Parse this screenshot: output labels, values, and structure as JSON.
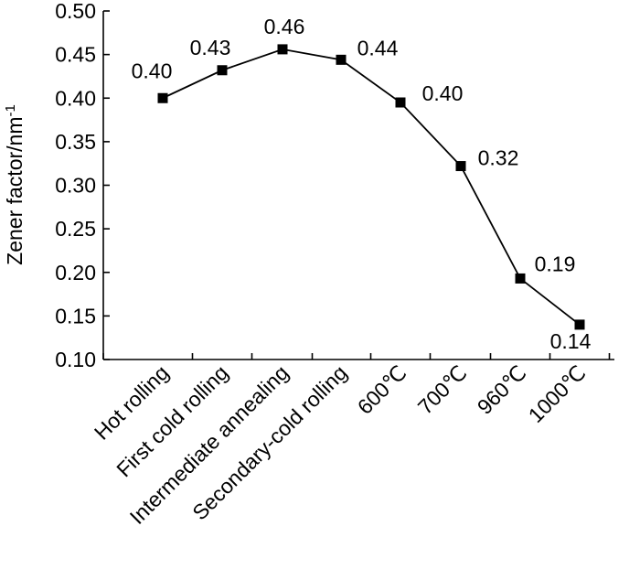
{
  "chart_data": {
    "type": "line",
    "categories": [
      "Hot rolling",
      "First cold rolling",
      "Intermediate annealing",
      "Secondary-cold rolling",
      "600℃",
      "700℃",
      "960℃",
      "1000℃"
    ],
    "values": [
      0.4,
      0.432,
      0.456,
      0.444,
      0.395,
      0.322,
      0.193,
      0.14
    ],
    "data_labels": [
      "0.40",
      "0.43",
      "0.46",
      "0.44",
      "0.40",
      "0.32",
      "0.19",
      "0.14"
    ],
    "ylabel": {
      "base": "Zener factor/nm",
      "superscript": "-1"
    },
    "ylim": [
      0.1,
      0.5
    ],
    "yticks": [
      "0.10",
      "0.15",
      "0.20",
      "0.25",
      "0.30",
      "0.35",
      "0.40",
      "0.45",
      "0.50"
    ],
    "grid": false,
    "legend": "none",
    "marker": "square",
    "color": "#000000"
  }
}
